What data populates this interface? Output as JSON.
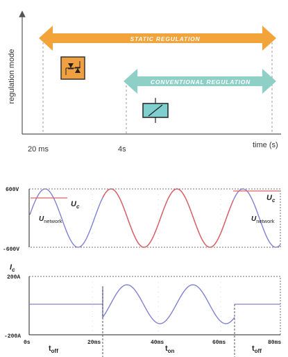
{
  "top_diagram": {
    "y_axis_label": "regulation mode",
    "x_axis_label": "time (s)",
    "tick_20ms": "20 ms",
    "tick_4s": "4s",
    "static_label": "STATIC REGULATION",
    "conventional_label": "CONVENTIONAL REGULATION",
    "static_icon": "thyristor-switch-icon",
    "conventional_icon": "contactor-icon",
    "colors": {
      "static_arrow": "#f2a33a",
      "conventional_arrow": "#8ecfc6",
      "static_icon_bg": "#f0a040",
      "conventional_icon_bg": "#7fcfcf"
    }
  },
  "voltage_plot": {
    "y_max_label": "600V",
    "y_min_label": "-600V",
    "uc_left": {
      "main": "U",
      "sub": "c"
    },
    "uc_right": {
      "main": "U",
      "sub": "c"
    },
    "unetwork_left": {
      "main": "U",
      "sub": "network"
    },
    "unetwork_right": {
      "main": "U",
      "sub": "network"
    },
    "colors": {
      "network": "#8080d0",
      "capacitor": "#e06060"
    }
  },
  "current_plot": {
    "y_label": {
      "main": "I",
      "sub": "c"
    },
    "y_max_label": "200A",
    "y_min_label": "-200A",
    "x_ticks": [
      "0s",
      "20ms",
      "40ms",
      "60ms",
      "80ms"
    ],
    "phase_labels": [
      {
        "main": "t",
        "sub": "off"
      },
      {
        "main": "t",
        "sub": "on"
      },
      {
        "main": "t",
        "sub": "off"
      }
    ],
    "colors": {
      "current": "#8080d0"
    }
  }
}
